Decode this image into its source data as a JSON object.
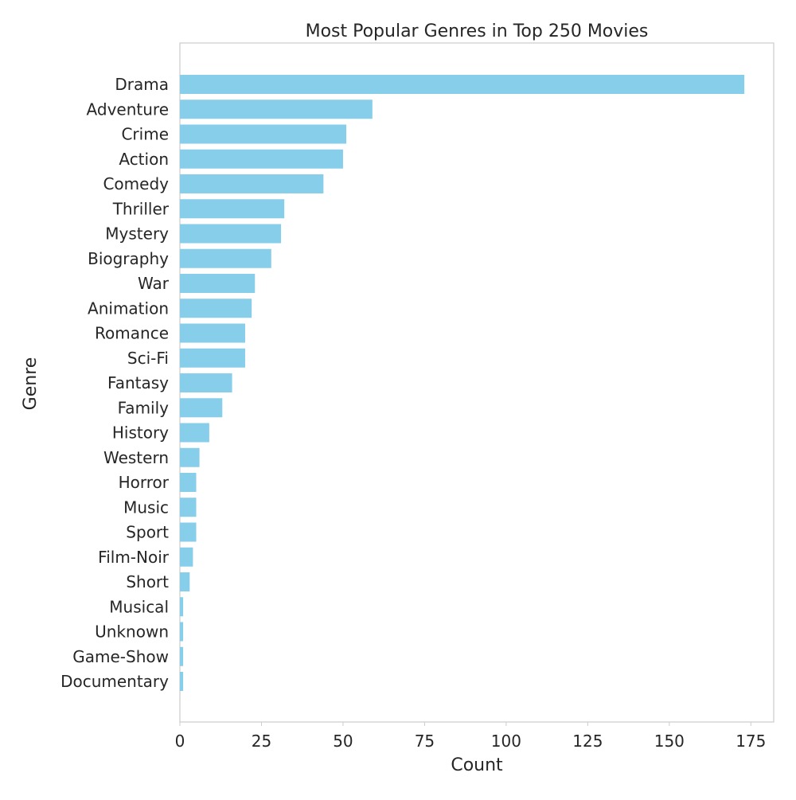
{
  "chart_data": {
    "type": "bar",
    "orientation": "horizontal",
    "title": "Most Popular Genres in Top 250 Movies",
    "xlabel": "Count",
    "ylabel": "Genre",
    "xlim": [
      0,
      182
    ],
    "xticks": [
      0,
      25,
      50,
      75,
      100,
      125,
      150,
      175
    ],
    "grid": false,
    "bar_color": "#87ceeb",
    "categories": [
      "Drama",
      "Adventure",
      "Crime",
      "Action",
      "Comedy",
      "Thriller",
      "Mystery",
      "Biography",
      "War",
      "Animation",
      "Romance",
      "Sci-Fi",
      "Fantasy",
      "Family",
      "History",
      "Western",
      "Horror",
      "Music",
      "Sport",
      "Film-Noir",
      "Short",
      "Musical",
      "Unknown",
      "Game-Show",
      "Documentary"
    ],
    "values": [
      173,
      59,
      51,
      50,
      44,
      32,
      31,
      28,
      23,
      22,
      20,
      20,
      16,
      13,
      9,
      6,
      5,
      5,
      5,
      4,
      3,
      1,
      1,
      1,
      1
    ]
  }
}
